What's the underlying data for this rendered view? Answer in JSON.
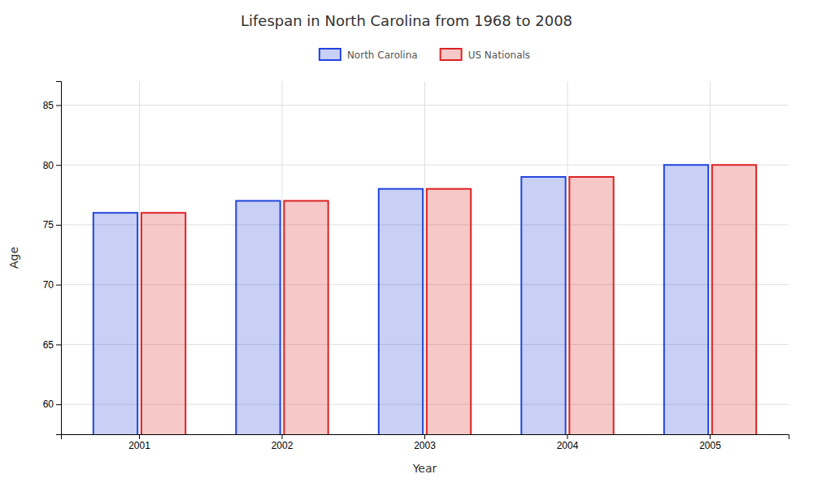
{
  "chart_data": {
    "type": "bar",
    "title": "Lifespan in North Carolina from 1968 to 2008",
    "x_label": "Year",
    "y_label": "Age",
    "categories": [
      "2001",
      "2002",
      "2003",
      "2004",
      "2005"
    ],
    "series": [
      {
        "name": "North Carolina",
        "color": "#2244dd",
        "values": [
          76,
          77,
          78,
          79,
          80
        ]
      },
      {
        "name": "US Nationals",
        "color": "#dd2222",
        "values": [
          76,
          77,
          78,
          79,
          80
        ]
      }
    ],
    "ylim": [
      57.5,
      87
    ],
    "yticks": [
      60,
      65,
      70,
      75,
      80,
      85
    ],
    "grid": true,
    "legend": "top"
  }
}
